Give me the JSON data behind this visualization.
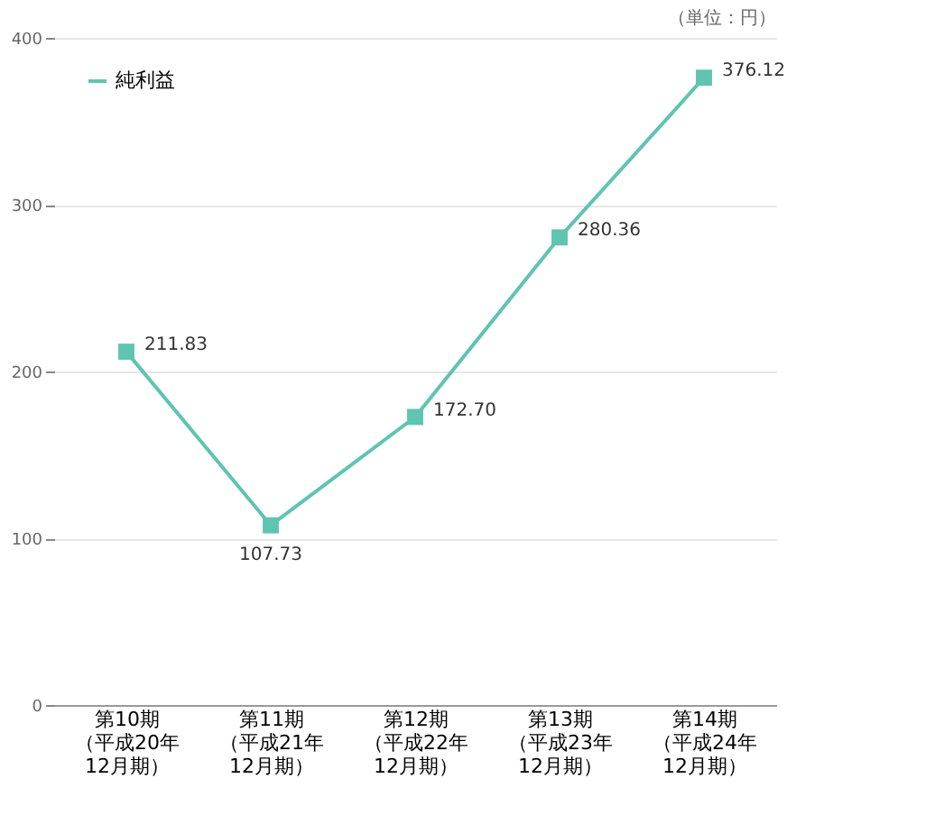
{
  "chart_data": {
    "type": "line",
    "categories": [
      "第10期（平成20年12月期）",
      "第11期（平成21年12月期）",
      "第12期（平成22年12月期）",
      "第13期（平成23年12月期）",
      "第14期（平成24年12月期）"
    ],
    "series": [
      {
        "name": "純利益",
        "color": "#5fc4b0",
        "values": [
          211.83,
          107.73,
          172.7,
          280.36,
          376.12
        ]
      }
    ],
    "value_labels": [
      "211.83",
      "107.73",
      "172.70",
      "280.36",
      "376.12"
    ],
    "ylim": [
      0,
      400
    ],
    "yticks": [
      0,
      100,
      200,
      300,
      400
    ],
    "annotations": [
      "（単位：円）"
    ],
    "grid": "y",
    "legend": "top left",
    "marker": "square",
    "line_style": "solid"
  }
}
